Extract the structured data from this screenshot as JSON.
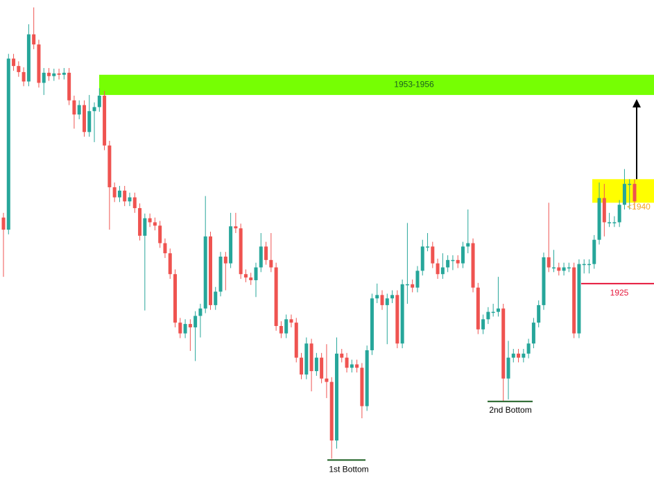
{
  "chart_data": {
    "type": "candlestick",
    "ylim": [
      1894.5,
      1967.1
    ],
    "up_color": "#26a69a",
    "down_color": "#ef5350",
    "open": [
      1934.8,
      1933.0,
      1958.4,
      1957.3,
      1956.4,
      1955.0,
      1962.0,
      1960.5,
      1954.8,
      1956.3,
      1955.8,
      1956.2,
      1956.0,
      1956.3,
      1952.2,
      1950.1,
      1951.5,
      1947.5,
      1950.6,
      1951.2,
      1952.9,
      1945.5,
      1939.3,
      1937.8,
      1938.8,
      1937.2,
      1937.8,
      1936.2,
      1932.1,
      1934.7,
      1934.1,
      1933.6,
      1931.0,
      1929.5,
      1926.4,
      1919.2,
      1917.6,
      1919.0,
      1918.5,
      1920.2,
      1921.3,
      1932.0,
      1921.8,
      1923.8,
      1929.0,
      1928.0,
      1933.5,
      1933.2,
      1926.4,
      1925.9,
      1925.5,
      1927.4,
      1930.5,
      1928.5,
      1927.4,
      1918.7,
      1917.6,
      1919.7,
      1919.2,
      1914.0,
      1911.5,
      1916.1,
      1912.0,
      1914.0,
      1910.9,
      1910.4,
      1901.7,
      1914.6,
      1914.0,
      1912.5,
      1913.0,
      1912.5,
      1906.8,
      1915.1,
      1922.8,
      1923.3,
      1921.8,
      1922.8,
      1923.3,
      1916.1,
      1924.9,
      1924.9,
      1924.4,
      1926.9,
      1930.5,
      1930.5,
      1928.0,
      1926.4,
      1927.4,
      1928.5,
      1928.5,
      1928.0,
      1930.5,
      1931.0,
      1924.4,
      1918.2,
      1919.7,
      1920.8,
      1920.8,
      1921.3,
      1910.9,
      1914.0,
      1914.6,
      1914.0,
      1914.6,
      1916.1,
      1919.2,
      1921.8,
      1928.9,
      1927.4,
      1927.4,
      1926.9,
      1927.4,
      1927.4,
      1917.6,
      1927.9,
      1927.9,
      1927.9,
      1931.5,
      1937.7,
      1934.1,
      1934.1,
      1934.1,
      1936.7,
      1939.8,
      1939.8
    ],
    "high": [
      1935.5,
      1959.1,
      1959.1,
      1958.0,
      1957.1,
      1963.5,
      1966.0,
      1961.2,
      1957.0,
      1957.0,
      1956.9,
      1956.9,
      1957.0,
      1957.0,
      1952.9,
      1952.2,
      1952.2,
      1953.0,
      1951.9,
      1954.0,
      1953.6,
      1946.2,
      1940.0,
      1939.5,
      1939.5,
      1938.5,
      1938.5,
      1936.9,
      1935.4,
      1935.4,
      1934.8,
      1934.3,
      1931.7,
      1930.2,
      1927.1,
      1919.9,
      1919.7,
      1919.7,
      1920.9,
      1922.0,
      1938.0,
      1932.7,
      1924.5,
      1929.7,
      1929.7,
      1935.5,
      1935.5,
      1933.9,
      1927.1,
      1926.6,
      1928.1,
      1932.5,
      1931.2,
      1932.5,
      1928.1,
      1919.4,
      1920.4,
      1920.4,
      1919.9,
      1914.7,
      1917.0,
      1916.8,
      1914.7,
      1914.7,
      1916.0,
      1911.1,
      1917.0,
      1915.3,
      1914.7,
      1913.7,
      1913.7,
      1913.2,
      1915.8,
      1923.5,
      1925.0,
      1924.0,
      1923.5,
      1924.0,
      1924.0,
      1925.6,
      1934.0,
      1925.6,
      1927.6,
      1931.5,
      1932.5,
      1931.2,
      1928.7,
      1929.5,
      1929.2,
      1929.2,
      1929.2,
      1931.2,
      1936.0,
      1931.7,
      1925.1,
      1920.4,
      1921.5,
      1922.0,
      1926.0,
      1922.0,
      1916.5,
      1915.3,
      1915.3,
      1915.3,
      1916.8,
      1919.9,
      1922.5,
      1929.6,
      1937.0,
      1930.0,
      1928.1,
      1928.1,
      1928.1,
      1928.1,
      1928.6,
      1928.6,
      1928.6,
      1932.2,
      1940.0,
      1939.8,
      1935.5,
      1935.0,
      1937.4,
      1942.0,
      1940.5,
      1940.5
    ],
    "low": [
      1926.0,
      1932.3,
      1956.6,
      1955.7,
      1954.3,
      1954.3,
      1959.8,
      1954.1,
      1953.0,
      1955.1,
      1955.1,
      1955.3,
      1955.3,
      1951.5,
      1948.0,
      1949.4,
      1946.8,
      1946.8,
      1946.0,
      1950.5,
      1944.8,
      1933.0,
      1937.1,
      1937.1,
      1936.5,
      1936.5,
      1935.5,
      1931.4,
      1921.0,
      1933.4,
      1932.9,
      1930.3,
      1928.8,
      1925.7,
      1918.5,
      1916.9,
      1916.9,
      1915.0,
      1913.5,
      1917.0,
      1920.6,
      1921.1,
      1921.1,
      1923.1,
      1924.0,
      1927.3,
      1932.5,
      1925.7,
      1925.2,
      1924.8,
      1923.0,
      1926.7,
      1927.8,
      1926.7,
      1918.0,
      1916.9,
      1916.9,
      1918.5,
      1913.3,
      1910.8,
      1910.8,
      1909.0,
      1911.3,
      1910.2,
      1908.0,
      1899.0,
      1900.5,
      1913.3,
      1911.8,
      1911.8,
      1911.8,
      1905.0,
      1906.1,
      1914.4,
      1922.1,
      1921.1,
      1916.0,
      1922.1,
      1915.4,
      1915.4,
      1922.0,
      1923.7,
      1923.7,
      1926.2,
      1929.8,
      1927.3,
      1925.7,
      1925.7,
      1926.7,
      1927.0,
      1927.3,
      1927.3,
      1929.5,
      1923.7,
      1917.5,
      1917.5,
      1919.0,
      1920.1,
      1920.1,
      1907.5,
      1907.8,
      1913.3,
      1913.3,
      1913.3,
      1913.9,
      1915.4,
      1918.5,
      1921.1,
      1926.7,
      1926.7,
      1926.2,
      1926.2,
      1926.7,
      1916.9,
      1916.9,
      1926.5,
      1926.5,
      1927.2,
      1930.8,
      1932.0,
      1933.4,
      1933.4,
      1933.4,
      1936.0,
      1936.0,
      1936.0
    ],
    "close": [
      1933.0,
      1958.4,
      1957.3,
      1956.4,
      1955.0,
      1962.0,
      1960.5,
      1954.8,
      1956.3,
      1955.8,
      1956.2,
      1956.0,
      1956.3,
      1952.2,
      1950.1,
      1951.5,
      1947.5,
      1950.6,
      1951.2,
      1952.9,
      1945.5,
      1939.3,
      1937.8,
      1938.8,
      1937.2,
      1937.8,
      1936.2,
      1932.1,
      1934.7,
      1934.1,
      1933.6,
      1931.0,
      1929.5,
      1926.4,
      1919.2,
      1917.6,
      1919.0,
      1918.5,
      1920.2,
      1921.3,
      1932.0,
      1921.8,
      1923.8,
      1929.0,
      1928.0,
      1933.5,
      1933.2,
      1926.4,
      1925.9,
      1925.5,
      1927.4,
      1930.5,
      1928.5,
      1927.4,
      1918.7,
      1917.6,
      1919.7,
      1919.2,
      1914.0,
      1911.5,
      1916.1,
      1912.0,
      1914.0,
      1910.9,
      1910.4,
      1901.7,
      1914.6,
      1914.0,
      1912.5,
      1913.0,
      1912.5,
      1906.8,
      1915.1,
      1922.8,
      1923.3,
      1921.8,
      1922.8,
      1923.3,
      1916.1,
      1924.9,
      1924.9,
      1924.4,
      1926.9,
      1930.5,
      1930.5,
      1928.0,
      1926.4,
      1927.4,
      1928.5,
      1928.5,
      1928.0,
      1930.5,
      1931.0,
      1924.4,
      1918.2,
      1919.7,
      1920.8,
      1920.8,
      1921.3,
      1910.9,
      1914.0,
      1914.6,
      1914.0,
      1914.6,
      1916.1,
      1919.2,
      1921.8,
      1928.9,
      1927.4,
      1927.4,
      1926.9,
      1927.4,
      1927.4,
      1917.6,
      1927.9,
      1927.9,
      1927.9,
      1931.5,
      1937.7,
      1934.1,
      1934.1,
      1934.1,
      1936.7,
      1939.8,
      1939.8,
      1937.2
    ],
    "zones": [
      {
        "label": "1953-1956",
        "low": 1953,
        "high": 1956,
        "color": "#76ff03",
        "text_color": "#1b5e20"
      },
      {
        "label": "<1940",
        "low": 1937,
        "high": 1940.5,
        "color": "#ffff00",
        "text_color": "#f5a623"
      }
    ],
    "levels": [
      {
        "label": "1925",
        "value": 1925,
        "color": "#e5163a"
      },
      {
        "label": "1st Bottom",
        "value": 1898.8,
        "color": "#1b5e20"
      },
      {
        "label": "2nd Bottom",
        "value": 1907.5,
        "color": "#1b5e20"
      }
    ]
  }
}
